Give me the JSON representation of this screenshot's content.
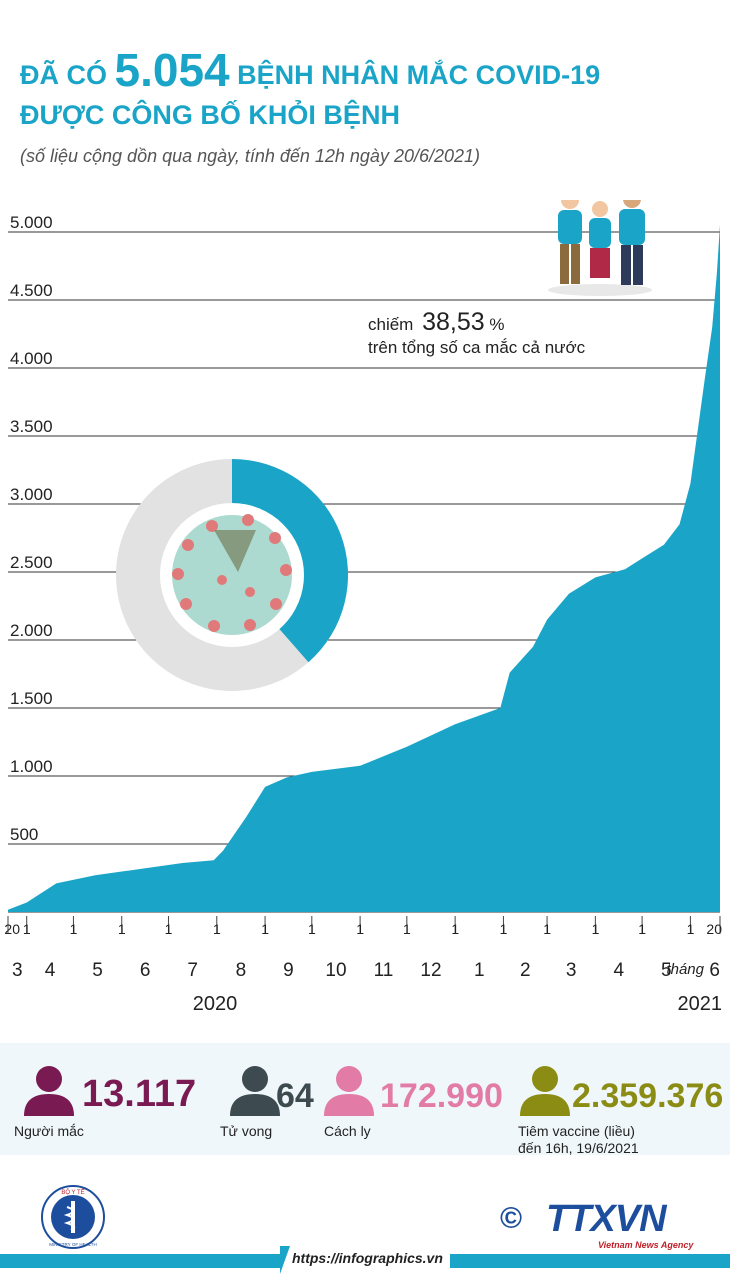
{
  "header": {
    "title_prefix": "ĐÃ CÓ",
    "title_number": "5.054",
    "title_suffix": "BỆNH NHÂN MẮC COVID-19",
    "title_line2": "ĐƯỢC CÔNG BỐ KHỎI BỆNH",
    "subtitle": "(số liệu cộng dồn qua ngày, tính đến 12h ngày 20/6/2021)"
  },
  "donut": {
    "percent_value": 38.53,
    "prefix": "chiếm",
    "percent_text": "38,53",
    "percent_sign": "%",
    "caption": "trên tổng số ca mắc cả nước",
    "color_part": "#1aa5c8",
    "color_rest": "#e2e2e2"
  },
  "chart_data": {
    "type": "area",
    "ylim": [
      0,
      5000
    ],
    "yticks": [
      "5.000",
      "4.500",
      "4.000",
      "3.500",
      "3.000",
      "2.500",
      "2.000",
      "1.500",
      "1.000",
      "500"
    ],
    "ytick_values": [
      5000,
      4500,
      4000,
      3500,
      3000,
      2500,
      2000,
      1500,
      1000,
      500
    ],
    "day_labels": [
      "20",
      "1",
      "1",
      "1",
      "1",
      "1",
      "1",
      "1",
      "1",
      "1",
      "1",
      "1",
      "1",
      "1",
      "1",
      "1",
      "20"
    ],
    "month_labels": [
      "3",
      "4",
      "5",
      "6",
      "7",
      "8",
      "9",
      "10",
      "11",
      "12",
      "1",
      "2",
      "3",
      "4",
      "5",
      "6"
    ],
    "month_word": "tháng",
    "year_labels": [
      "2020",
      "2021"
    ],
    "x": [
      "2020-03-20",
      "2020-04-01",
      "2020-04-20",
      "2020-05-15",
      "2020-06-15",
      "2020-07-10",
      "2020-07-30",
      "2020-08-05",
      "2020-08-20",
      "2020-09-01",
      "2020-09-15",
      "2020-10-01",
      "2020-11-01",
      "2020-12-01",
      "2021-01-01",
      "2021-01-30",
      "2021-02-05",
      "2021-02-20",
      "2021-03-01",
      "2021-03-15",
      "2021-04-01",
      "2021-04-20",
      "2021-05-01",
      "2021-05-15",
      "2021-05-25",
      "2021-06-01",
      "2021-06-10",
      "2021-06-15",
      "2021-06-18",
      "2021-06-20"
    ],
    "values": [
      17,
      70,
      210,
      270,
      320,
      360,
      380,
      450,
      700,
      920,
      990,
      1030,
      1075,
      1215,
      1380,
      1500,
      1760,
      1950,
      2150,
      2340,
      2460,
      2520,
      2600,
      2700,
      2850,
      3150,
      3900,
      4300,
      4700,
      5054
    ],
    "color": "#1aa5c8"
  },
  "stats": [
    {
      "value": "13.117",
      "label": "Người mắc",
      "color": "#7a1a52"
    },
    {
      "value": "64",
      "label": "Tử vong",
      "color": "#3d4a4f"
    },
    {
      "value": "172.990",
      "label": "Cách ly",
      "color": "#e27ba6"
    },
    {
      "value": "2.359.376",
      "label": "Tiêm vaccine (liều)",
      "label2": "đến 16h, 19/6/2021",
      "color": "#8a8c14"
    }
  ],
  "footer": {
    "url": "https://infographics.vn",
    "bar_color": "#1aa5c8",
    "copyright": "©",
    "ttx_logo": "TTXVN",
    "ttx_sub": "Vietnam News Agency"
  },
  "logos": {
    "moh_top": "BỘ Y TẾ",
    "moh_bottom": "MINISTRY OF HEALTH"
  }
}
